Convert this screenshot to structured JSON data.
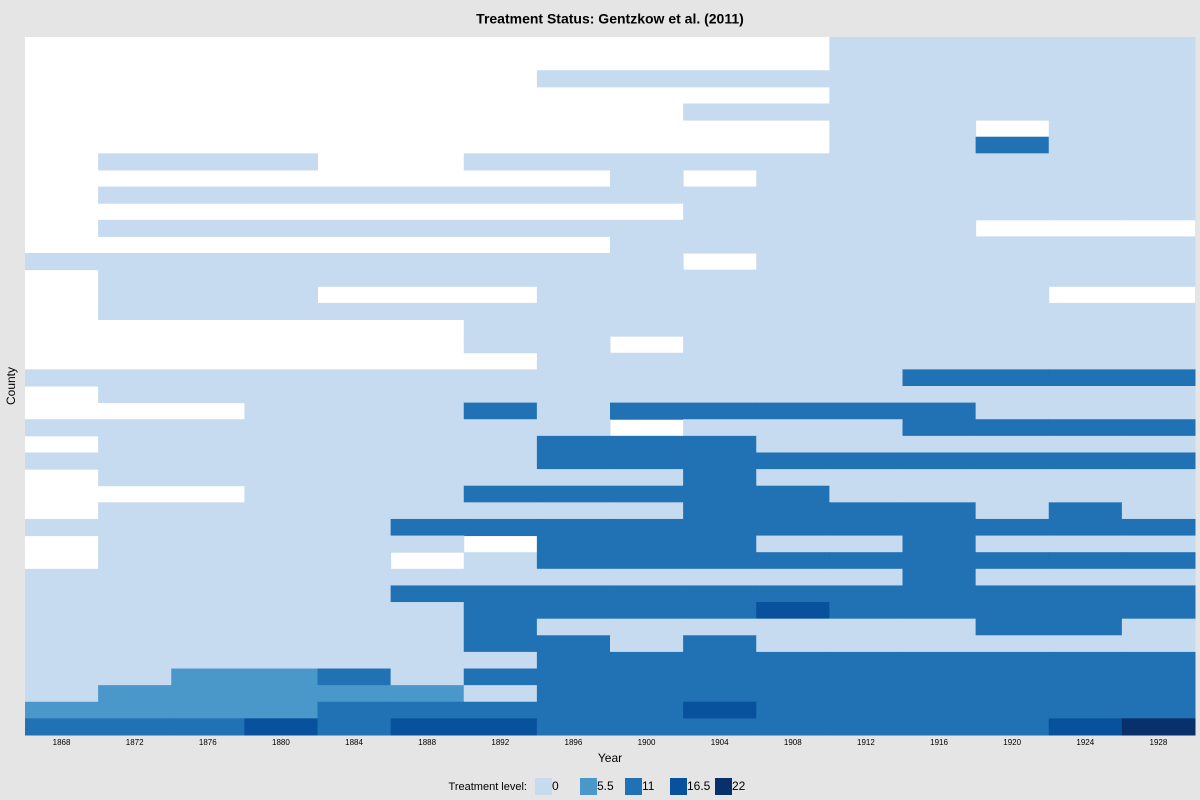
{
  "chart_data": {
    "type": "heatmap",
    "title": "Treatment Status: Gentzkow et al. (2011)",
    "x_label": "Year",
    "y_label": "County",
    "x": [
      1868,
      1872,
      1876,
      1880,
      1884,
      1888,
      1892,
      1896,
      1900,
      1904,
      1908,
      1912,
      1916,
      1920,
      1924,
      1928
    ],
    "legend": {
      "title": "Treatment level:",
      "levels": [
        0,
        5.5,
        11,
        16.5,
        22
      ],
      "colors": [
        "#c6dbef",
        "#4a98c9",
        "#2171b5",
        "#08519c",
        "#08306b"
      ]
    },
    "missing_color": "#ffffff",
    "z": [
      [
        null,
        null,
        null,
        null,
        null,
        null,
        null,
        null,
        null,
        null,
        null,
        0,
        0,
        0,
        0,
        0
      ],
      [
        null,
        null,
        null,
        null,
        null,
        null,
        null,
        null,
        null,
        null,
        null,
        0,
        0,
        0,
        0,
        0
      ],
      [
        null,
        null,
        null,
        null,
        null,
        null,
        null,
        0,
        0,
        0,
        0,
        0,
        0,
        0,
        0,
        0
      ],
      [
        null,
        null,
        null,
        null,
        null,
        null,
        null,
        null,
        null,
        null,
        null,
        0,
        0,
        0,
        0,
        0
      ],
      [
        null,
        null,
        null,
        null,
        null,
        null,
        null,
        null,
        null,
        0,
        0,
        0,
        0,
        0,
        0,
        0
      ],
      [
        null,
        null,
        null,
        null,
        null,
        null,
        null,
        null,
        null,
        null,
        null,
        0,
        0,
        null,
        0,
        0
      ],
      [
        null,
        null,
        null,
        null,
        null,
        null,
        null,
        null,
        null,
        null,
        null,
        0,
        0,
        11,
        0,
        0
      ],
      [
        null,
        0,
        0,
        0,
        null,
        null,
        0,
        0,
        0,
        0,
        0,
        0,
        0,
        0,
        0,
        0
      ],
      [
        null,
        null,
        null,
        null,
        null,
        null,
        null,
        null,
        0,
        null,
        0,
        0,
        0,
        0,
        0,
        0
      ],
      [
        null,
        0,
        0,
        0,
        0,
        0,
        0,
        0,
        0,
        0,
        0,
        0,
        0,
        0,
        0,
        0
      ],
      [
        null,
        null,
        null,
        null,
        null,
        null,
        null,
        null,
        null,
        0,
        0,
        0,
        0,
        0,
        0,
        0
      ],
      [
        null,
        0,
        0,
        0,
        0,
        0,
        0,
        0,
        0,
        0,
        0,
        0,
        0,
        null,
        null,
        null
      ],
      [
        null,
        null,
        null,
        null,
        null,
        null,
        null,
        null,
        0,
        0,
        0,
        0,
        0,
        0,
        0,
        0
      ],
      [
        0,
        0,
        0,
        0,
        0,
        0,
        0,
        0,
        0,
        null,
        0,
        0,
        0,
        0,
        0,
        0
      ],
      [
        null,
        0,
        0,
        0,
        0,
        0,
        0,
        0,
        0,
        0,
        0,
        0,
        0,
        0,
        0,
        0
      ],
      [
        null,
        0,
        0,
        0,
        null,
        null,
        null,
        0,
        0,
        0,
        0,
        0,
        0,
        0,
        null,
        null
      ],
      [
        null,
        0,
        0,
        0,
        0,
        0,
        0,
        0,
        0,
        0,
        0,
        0,
        0,
        0,
        0,
        0
      ],
      [
        null,
        null,
        null,
        null,
        null,
        null,
        0,
        0,
        0,
        0,
        0,
        0,
        0,
        0,
        0,
        0
      ],
      [
        null,
        null,
        null,
        null,
        null,
        null,
        0,
        0,
        null,
        0,
        0,
        0,
        0,
        0,
        0,
        0
      ],
      [
        null,
        null,
        null,
        null,
        null,
        null,
        null,
        0,
        0,
        0,
        0,
        0,
        0,
        0,
        0,
        0
      ],
      [
        0,
        0,
        0,
        0,
        0,
        0,
        0,
        0,
        0,
        0,
        0,
        0,
        11,
        11,
        11,
        11
      ],
      [
        null,
        0,
        0,
        0,
        0,
        0,
        0,
        0,
        0,
        0,
        0,
        0,
        0,
        0,
        0,
        0
      ],
      [
        null,
        null,
        null,
        0,
        0,
        0,
        11,
        0,
        11,
        11,
        11,
        11,
        11,
        0,
        0,
        0
      ],
      [
        0,
        0,
        0,
        0,
        0,
        0,
        0,
        0,
        null,
        0,
        0,
        0,
        11,
        11,
        11,
        11
      ],
      [
        null,
        0,
        0,
        0,
        0,
        0,
        0,
        11,
        11,
        11,
        0,
        0,
        0,
        0,
        0,
        0
      ],
      [
        0,
        0,
        0,
        0,
        0,
        0,
        0,
        11,
        11,
        11,
        11,
        11,
        11,
        11,
        11,
        11
      ],
      [
        null,
        0,
        0,
        0,
        0,
        0,
        0,
        0,
        0,
        11,
        0,
        0,
        0,
        0,
        0,
        0
      ],
      [
        null,
        null,
        null,
        0,
        0,
        0,
        11,
        11,
        11,
        11,
        11,
        0,
        0,
        0,
        0,
        0
      ],
      [
        null,
        0,
        0,
        0,
        0,
        0,
        0,
        0,
        0,
        11,
        11,
        11,
        11,
        0,
        11,
        0
      ],
      [
        0,
        0,
        0,
        0,
        0,
        11,
        11,
        11,
        11,
        11,
        11,
        11,
        11,
        11,
        11,
        11
      ],
      [
        null,
        0,
        0,
        0,
        0,
        0,
        null,
        11,
        11,
        11,
        0,
        0,
        11,
        0,
        0,
        0
      ],
      [
        null,
        0,
        0,
        0,
        0,
        null,
        0,
        11,
        11,
        11,
        11,
        11,
        11,
        11,
        11,
        11
      ],
      [
        0,
        0,
        0,
        0,
        0,
        0,
        0,
        0,
        0,
        0,
        0,
        0,
        11,
        0,
        0,
        0
      ],
      [
        0,
        0,
        0,
        0,
        0,
        11,
        11,
        11,
        11,
        11,
        11,
        11,
        11,
        11,
        11,
        11
      ],
      [
        0,
        0,
        0,
        0,
        0,
        0,
        11,
        11,
        11,
        11,
        16.5,
        11,
        11,
        11,
        11,
        11
      ],
      [
        0,
        0,
        0,
        0,
        0,
        0,
        11,
        0,
        0,
        0,
        0,
        0,
        0,
        11,
        11,
        0
      ],
      [
        0,
        0,
        0,
        0,
        0,
        0,
        11,
        11,
        0,
        11,
        0,
        0,
        0,
        0,
        0,
        0
      ],
      [
        0,
        0,
        0,
        0,
        0,
        0,
        0,
        11,
        11,
        11,
        11,
        11,
        11,
        11,
        11,
        11
      ],
      [
        0,
        0,
        5.5,
        5.5,
        11,
        0,
        11,
        11,
        11,
        11,
        11,
        11,
        11,
        11,
        11,
        11
      ],
      [
        0,
        5.5,
        5.5,
        5.5,
        5.5,
        5.5,
        0,
        11,
        11,
        11,
        11,
        11,
        11,
        11,
        11,
        11
      ],
      [
        5.5,
        5.5,
        5.5,
        5.5,
        11,
        11,
        11,
        11,
        11,
        16.5,
        11,
        11,
        11,
        11,
        11,
        11
      ],
      [
        11,
        11,
        11,
        16.5,
        11,
        16.5,
        16.5,
        11,
        11,
        11,
        11,
        11,
        11,
        11,
        16.5,
        22
      ]
    ]
  }
}
